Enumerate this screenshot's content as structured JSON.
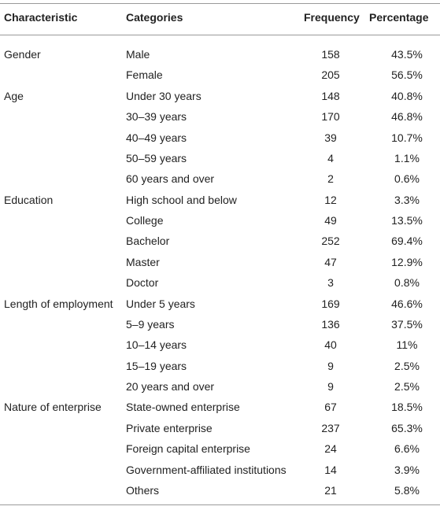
{
  "table": {
    "header": [
      "Characteristic",
      "Categories",
      "Frequency",
      "Percentage"
    ],
    "groups": [
      {
        "characteristic": "Gender",
        "rows": [
          [
            "Male",
            158,
            "43.5%"
          ],
          [
            "Female",
            205,
            "56.5%"
          ]
        ]
      },
      {
        "characteristic": "Age",
        "rows": [
          [
            "Under 30 years",
            148,
            "40.8%"
          ],
          [
            "30–39 years",
            170,
            "46.8%"
          ],
          [
            "40–49 years",
            39,
            "10.7%"
          ],
          [
            "50–59 years",
            4,
            "1.1%"
          ],
          [
            "60 years and over",
            2,
            "0.6%"
          ]
        ]
      },
      {
        "characteristic": "Education",
        "rows": [
          [
            "High school and below",
            12,
            "3.3%"
          ],
          [
            "College",
            49,
            "13.5%"
          ],
          [
            "Bachelor",
            252,
            "69.4%"
          ],
          [
            "Master",
            47,
            "12.9%"
          ],
          [
            "Doctor",
            3,
            "0.8%"
          ]
        ]
      },
      {
        "characteristic": "Length of employment",
        "rows": [
          [
            "Under 5 years",
            169,
            "46.6%"
          ],
          [
            "5–9 years",
            136,
            "37.5%"
          ],
          [
            "10–14 years",
            40,
            "11%"
          ],
          [
            "15–19 years",
            9,
            "2.5%"
          ],
          [
            "20 years and over",
            9,
            "2.5%"
          ]
        ]
      },
      {
        "characteristic": "Nature of enterprise",
        "rows": [
          [
            "State-owned enterprise",
            67,
            "18.5%"
          ],
          [
            "Private enterprise",
            237,
            "65.3%"
          ],
          [
            "Foreign capital enterprise",
            24,
            "6.6%"
          ],
          [
            "Government-affiliated institutions",
            14,
            "3.9%"
          ],
          [
            "Others",
            21,
            "5.8%"
          ]
        ]
      }
    ]
  }
}
